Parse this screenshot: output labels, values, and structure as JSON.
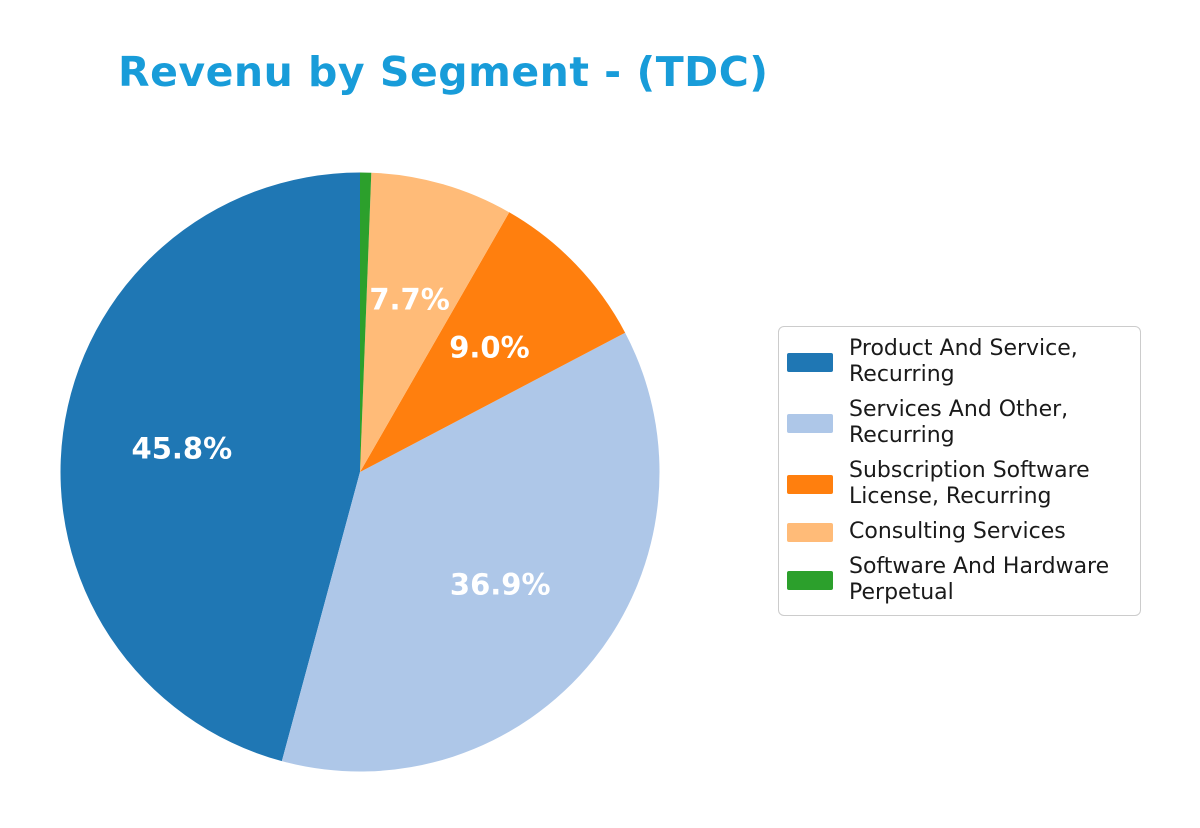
{
  "chart_data": {
    "type": "pie",
    "title": "Revenu by Segment - (TDC)",
    "title_color": "#189cd9",
    "label_color": "#ffffff",
    "legend_position": "right",
    "start_angle_deg": 90,
    "direction": "counterclockwise",
    "label_radius_fraction": 0.6,
    "segments": [
      {
        "label": "Product And Service, Recurring",
        "value": 45.8,
        "pct_label": "45.8%",
        "color": "#1f77b4"
      },
      {
        "label": "Services And Other, Recurring",
        "value": 36.9,
        "pct_label": "36.9%",
        "color": "#aec7e8"
      },
      {
        "label": "Subscription Software License, Recurring",
        "value": 9.0,
        "pct_label": "9.0%",
        "color": "#ff7f0e"
      },
      {
        "label": "Consulting Services",
        "value": 7.7,
        "pct_label": "7.7%",
        "color": "#ffbb78"
      },
      {
        "label": "Software And Hardware Perpetual",
        "value": 0.6,
        "pct_label": "",
        "color": "#2ca02c"
      }
    ]
  }
}
